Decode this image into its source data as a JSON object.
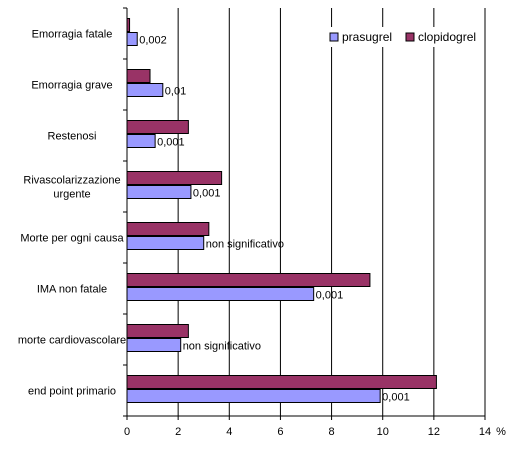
{
  "chart_data": {
    "type": "bar",
    "orientation": "horizontal",
    "unit": "%",
    "categories": [
      [
        "Emorragia fatale"
      ],
      [
        "Emorragia grave"
      ],
      [
        "Restenosi"
      ],
      [
        "Rivascolarizzazione",
        "urgente"
      ],
      [
        "Morte per ogni causa"
      ],
      [
        "IMA non fatale"
      ],
      [
        "morte cardiovascolare"
      ],
      [
        "end point primario"
      ]
    ],
    "series": [
      {
        "name": "prasugrel",
        "color": "#9999ff",
        "values": [
          0.4,
          1.4,
          1.1,
          2.5,
          3.0,
          7.3,
          2.1,
          9.9
        ]
      },
      {
        "name": "clopidogrel",
        "color": "#993366",
        "values": [
          0.1,
          0.9,
          2.4,
          3.7,
          3.2,
          9.5,
          2.4,
          12.1
        ]
      }
    ],
    "annotations": [
      "0,002",
      "0,01",
      "0,001",
      "0,001",
      "non significativo",
      "0,001",
      "non significativo",
      "0,001"
    ],
    "xlim": [
      0,
      14
    ],
    "xticks": [
      "0",
      "2",
      "4",
      "6",
      "8",
      "10",
      "12",
      "14"
    ],
    "grid": true,
    "legend_position": "top-right"
  }
}
